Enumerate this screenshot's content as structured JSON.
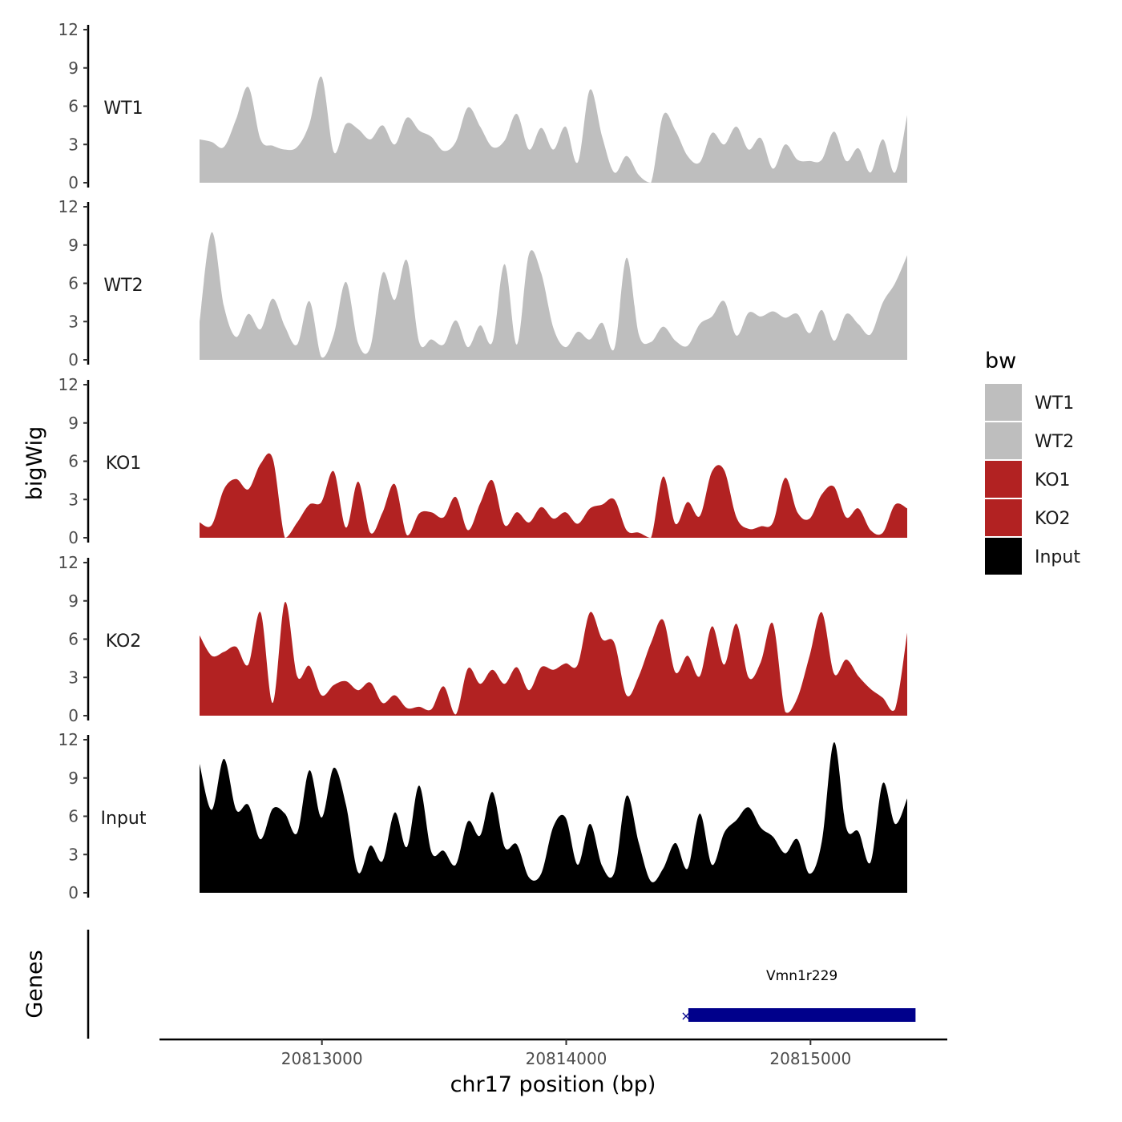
{
  "chart_data": {
    "type": "area",
    "x": [
      20812500,
      20812550,
      20812600,
      20812650,
      20812700,
      20812750,
      20812800,
      20812850,
      20812900,
      20812950,
      20813000,
      20813050,
      20813100,
      20813150,
      20813200,
      20813250,
      20813300,
      20813350,
      20813400,
      20813450,
      20813500,
      20813550,
      20813600,
      20813650,
      20813700,
      20813750,
      20813800,
      20813850,
      20813900,
      20813950,
      20814000,
      20814050,
      20814100,
      20814150,
      20814200,
      20814250,
      20814300,
      20814350,
      20814400,
      20814450,
      20814500,
      20814550,
      20814600,
      20814650,
      20814700,
      20814750,
      20814800,
      20814850,
      20814900,
      20814950,
      20815000,
      20815050,
      20815100,
      20815150,
      20815200,
      20815250,
      20815300,
      20815350,
      20815400
    ],
    "series": [
      {
        "name": "WT1",
        "color": "#BEBEBE",
        "values": [
          3.4,
          3.2,
          2.8,
          5.0,
          7.5,
          3.4,
          2.9,
          2.6,
          2.8,
          4.6,
          8.3,
          2.4,
          4.6,
          4.2,
          3.4,
          4.5,
          3.0,
          5.1,
          4.1,
          3.6,
          2.5,
          3.2,
          5.9,
          4.4,
          2.8,
          3.3,
          5.4,
          2.6,
          4.3,
          2.6,
          4.4,
          1.6,
          7.3,
          3.6,
          0.8,
          2.1,
          0.6,
          0.0,
          5.3,
          4.1,
          2.1,
          1.6,
          3.9,
          3.0,
          4.4,
          2.6,
          3.5,
          1.1,
          3.0,
          1.8,
          1.7,
          1.8,
          4.0,
          1.7,
          2.7,
          0.8,
          3.4,
          0.8,
          5.3
        ]
      },
      {
        "name": "WT2",
        "color": "#BEBEBE",
        "values": [
          3.0,
          10.0,
          4.2,
          1.8,
          3.6,
          2.4,
          4.8,
          2.6,
          1.2,
          4.6,
          0.2,
          2.0,
          6.1,
          1.3,
          1.0,
          6.8,
          4.7,
          7.8,
          1.4,
          1.6,
          1.2,
          3.1,
          1.0,
          2.7,
          1.4,
          7.5,
          1.2,
          8.3,
          6.8,
          2.5,
          1.0,
          2.2,
          1.6,
          2.9,
          0.9,
          8.0,
          2.0,
          1.4,
          2.6,
          1.5,
          1.1,
          2.8,
          3.4,
          4.6,
          1.9,
          3.7,
          3.4,
          3.8,
          3.3,
          3.6,
          2.1,
          3.9,
          1.5,
          3.6,
          2.8,
          2.0,
          4.5,
          6.0,
          8.2
        ]
      },
      {
        "name": "KO1",
        "color": "#B22222",
        "values": [
          1.2,
          1.0,
          3.8,
          4.6,
          3.8,
          5.8,
          6.2,
          0.0,
          1.2,
          2.6,
          2.8,
          5.2,
          0.8,
          4.4,
          0.4,
          2.0,
          4.2,
          0.2,
          1.9,
          2.0,
          1.6,
          3.2,
          0.6,
          2.7,
          4.5,
          1.0,
          2.0,
          1.2,
          2.4,
          1.5,
          2.0,
          1.1,
          2.3,
          2.6,
          3.0,
          0.6,
          0.4,
          0.0,
          4.8,
          1.1,
          2.8,
          1.7,
          5.2,
          5.3,
          1.6,
          0.7,
          0.9,
          1.2,
          4.7,
          2.0,
          1.5,
          3.4,
          4.0,
          1.6,
          2.3,
          0.6,
          0.4,
          2.6,
          2.3
        ]
      },
      {
        "name": "KO2",
        "color": "#B22222",
        "values": [
          6.3,
          4.7,
          5.0,
          5.4,
          4.0,
          8.1,
          1.0,
          8.9,
          3.1,
          3.9,
          1.6,
          2.4,
          2.7,
          2.0,
          2.6,
          1.0,
          1.6,
          0.6,
          0.7,
          0.5,
          2.3,
          0.1,
          3.7,
          2.5,
          3.6,
          2.5,
          3.8,
          2.0,
          3.8,
          3.6,
          4.1,
          4.0,
          8.1,
          6.0,
          5.7,
          1.6,
          3.1,
          5.7,
          7.5,
          3.4,
          4.7,
          3.1,
          7.0,
          4.0,
          7.2,
          3.0,
          4.2,
          7.2,
          0.3,
          1.4,
          4.7,
          8.1,
          3.3,
          4.4,
          3.1,
          2.1,
          1.4,
          0.5,
          6.5
        ]
      },
      {
        "name": "Input",
        "color": "#000000",
        "values": [
          10.1,
          6.5,
          10.5,
          6.5,
          6.9,
          4.2,
          6.6,
          6.2,
          4.7,
          9.6,
          5.9,
          9.8,
          6.9,
          1.6,
          3.7,
          2.5,
          6.3,
          3.6,
          8.4,
          3.2,
          3.3,
          2.2,
          5.6,
          4.5,
          7.9,
          3.6,
          3.8,
          1.2,
          1.5,
          5.2,
          5.9,
          2.2,
          5.4,
          2.1,
          1.6,
          7.6,
          3.9,
          0.9,
          1.9,
          3.9,
          1.9,
          6.2,
          2.2,
          4.7,
          5.7,
          6.7,
          5.1,
          4.4,
          3.1,
          4.2,
          1.5,
          4.0,
          11.8,
          5.1,
          4.8,
          2.4,
          8.6,
          5.4,
          7.4
        ]
      }
    ],
    "xlabel": "chr17 position (bp)",
    "ylabel": "bigWig",
    "ylim": [
      0,
      12
    ],
    "yticks": [
      "0",
      "3",
      "6",
      "9",
      "12"
    ],
    "xlim": [
      20812335,
      20815560
    ],
    "xticks": [
      {
        "value": 20813000,
        "label": "20813000"
      },
      {
        "value": 20814000,
        "label": "20814000"
      },
      {
        "value": 20815000,
        "label": "20815000"
      }
    ],
    "gene_track": {
      "title": "Genes",
      "genes": [
        {
          "name": "Vmn1r229",
          "start": 20814500,
          "end": 20815430,
          "strand": "-",
          "color": "#00008B"
        }
      ]
    },
    "legend": {
      "title": "bw",
      "position": "right",
      "entries": [
        {
          "label": "WT1",
          "color": "#BEBEBE"
        },
        {
          "label": "WT2",
          "color": "#BEBEBE"
        },
        {
          "label": "KO1",
          "color": "#B22222"
        },
        {
          "label": "KO2",
          "color": "#B22222"
        },
        {
          "label": "Input",
          "color": "#000000"
        }
      ]
    },
    "grid": false
  }
}
